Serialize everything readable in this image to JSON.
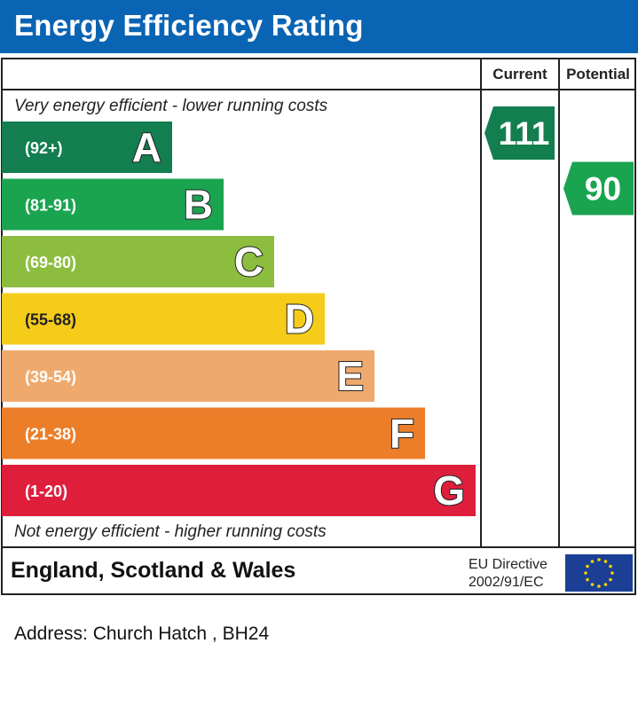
{
  "header": {
    "title": "Energy Efficiency Rating"
  },
  "columns": {
    "current": "Current",
    "potential": "Potential"
  },
  "notes": {
    "top": "Very energy efficient - lower running costs",
    "bottom": "Not energy efficient - higher running costs"
  },
  "footer": {
    "region": "England, Scotland & Wales",
    "directive_line1": "EU Directive",
    "directive_line2": "2002/91/EC",
    "flag_icon": "eu-flag-icon"
  },
  "address": "Address: Church Hatch , BH24",
  "chart_data": {
    "type": "bar",
    "categories": [
      "A",
      "B",
      "C",
      "D",
      "E",
      "F",
      "G"
    ],
    "ranges": [
      "(92+)",
      "(81-91)",
      "(69-80)",
      "(55-68)",
      "(39-54)",
      "(21-38)",
      "(1-20)"
    ],
    "colors": [
      "#137e4f",
      "#1ba450",
      "#8cbd3f",
      "#f5cc1a",
      "#f0a96c",
      "#ec7e2a",
      "#df1e3c"
    ],
    "current": {
      "value": 111,
      "band": "A",
      "color": "#137e4f"
    },
    "potential": {
      "value": 90,
      "band": "B",
      "color": "#1ba450"
    }
  }
}
